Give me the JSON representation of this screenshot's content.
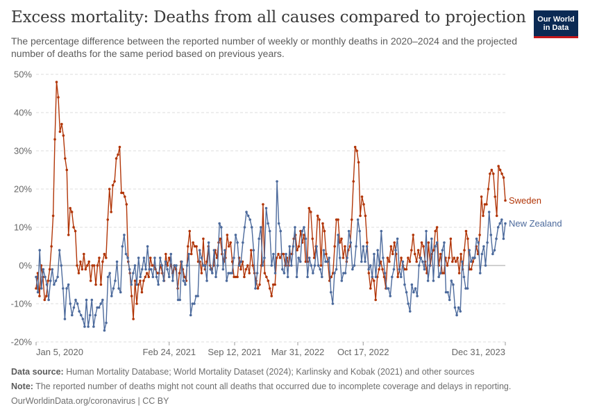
{
  "header": {
    "title": "Excess mortality: Deaths from all causes compared to projection",
    "subtitle": "The percentage difference between the reported number of weekly or monthly deaths in 2020–2024 and the projected number of deaths for the same period based on previous years.",
    "logo_line1": "Our World",
    "logo_line2": "in Data"
  },
  "footer": {
    "source_label": "Data source:",
    "source_text": "Human Mortality Database; World Mortality Dataset (2024); Karlinsky and Kobak (2021) and other sources",
    "note_label": "Note:",
    "note_text": "The reported number of deaths might not count all deaths that occurred due to incomplete coverage and delays in reporting.",
    "credit": "OurWorldinData.org/coronavirus | CC BY"
  },
  "colors": {
    "sweden": "#b13507",
    "new_zealand": "#4c6a9c",
    "grid": "#dddddd",
    "zero": "#a0a0a0"
  },
  "chart_data": {
    "type": "line",
    "title": "Excess mortality: Deaths from all causes compared to projection",
    "ylabel": "",
    "xlabel": "",
    "ylim": [
      -20,
      50
    ],
    "y_ticks": [
      -20,
      -10,
      0,
      10,
      20,
      30,
      40,
      50
    ],
    "y_tick_labels": [
      "-20%",
      "-10%",
      "0%",
      "10%",
      "20%",
      "30%",
      "40%",
      "50%"
    ],
    "x_unit": "week index (0 = Jan 5, 2020)",
    "xlim": [
      0,
      208
    ],
    "x_ticks": [
      0,
      59,
      88,
      116,
      145,
      208
    ],
    "x_tick_labels": [
      "Jan 5, 2020",
      "Feb 24, 2021",
      "Sep 12, 2021",
      "Mar 31, 2022",
      "Oct 17, 2022",
      "Dec 31, 2023"
    ],
    "series": [
      {
        "name": "Sweden",
        "color": "#b13507",
        "values": [
          -6,
          -2,
          -8,
          0,
          -3,
          -9,
          -8,
          -4,
          -1,
          5,
          13,
          33,
          48,
          44,
          35,
          37,
          34,
          28,
          25,
          8,
          15,
          14,
          10,
          9,
          0,
          -2,
          1,
          -1,
          3,
          -1,
          0,
          1,
          -4,
          0,
          0,
          -5,
          0,
          2,
          -5,
          1,
          3,
          2,
          12,
          20,
          14,
          21,
          22,
          28,
          29,
          31,
          19,
          19,
          18,
          16,
          1,
          -2,
          -8,
          -14,
          -4,
          -10,
          -5,
          -4,
          -7,
          -4,
          -3,
          -2,
          -3,
          2,
          0,
          0,
          -1,
          -2,
          -2,
          0,
          -2,
          -4,
          3,
          0,
          2,
          0,
          -2,
          0,
          -1,
          -6,
          -2,
          1,
          -1,
          -3,
          -4,
          5,
          9,
          3,
          6,
          5,
          5,
          1,
          1,
          -2,
          7,
          -1,
          1,
          5,
          0,
          -1,
          0,
          4,
          2,
          6,
          7,
          3,
          1,
          2,
          8,
          5,
          6,
          1,
          -3,
          -3,
          -3,
          2,
          -1,
          1,
          -3,
          -1,
          0,
          -2,
          4,
          0,
          -2,
          -4,
          -6,
          -5,
          0,
          16,
          -2,
          -3,
          -4,
          -6,
          -8,
          -5,
          -5,
          2,
          3,
          2,
          3,
          3,
          0,
          2,
          0,
          3,
          3,
          7,
          8,
          4,
          5,
          9,
          6,
          8,
          1,
          1,
          15,
          14,
          7,
          2,
          5,
          13,
          12,
          0,
          11,
          9,
          3,
          1,
          -4,
          -3,
          -2,
          5,
          12,
          12,
          6,
          7,
          2,
          5,
          1,
          4,
          5,
          12,
          22,
          31,
          30,
          27,
          13,
          18,
          16,
          13,
          6,
          -2,
          -6,
          -3,
          -4,
          -9,
          -3,
          -1,
          1,
          -1,
          -3,
          -6,
          2,
          1,
          5,
          3,
          6,
          3,
          -3,
          -1,
          2,
          0,
          -1,
          -1,
          2,
          1,
          4,
          8,
          3,
          1,
          4,
          2,
          6,
          5,
          1,
          -2,
          6,
          0,
          3,
          4,
          9,
          10,
          0,
          3,
          -2,
          -2,
          2,
          0,
          2,
          7,
          1,
          2,
          1,
          2,
          -2,
          3,
          -1,
          4,
          9,
          7,
          -1,
          -1,
          1,
          2,
          5,
          3,
          8,
          18,
          13,
          16,
          16,
          20,
          24,
          25,
          24,
          18,
          13,
          26,
          25,
          24,
          23,
          17
        ]
      },
      {
        "name": "New Zealand",
        "color": "#4c6a9c",
        "values": [
          -3,
          -7,
          4,
          -6,
          -1,
          -3,
          -5,
          -9,
          -4,
          -1,
          -5,
          -4,
          -3,
          4,
          0,
          -6,
          -14,
          -6,
          -5,
          -10,
          -13,
          -11,
          -9,
          -10,
          -12,
          -13,
          -14,
          -16,
          -9,
          -16,
          -13,
          -9,
          -16,
          -13,
          -11,
          -11,
          -10,
          -9,
          -17,
          -15,
          -3,
          -2,
          -8,
          -6,
          -4,
          1,
          -6,
          -7,
          5,
          8,
          3,
          2,
          -1,
          -5,
          -2,
          0,
          -5,
          2,
          -3,
          -1,
          2,
          -1,
          5,
          -1,
          -1,
          -3,
          2,
          -3,
          -5,
          2,
          0,
          -4,
          1,
          -1,
          -3,
          3,
          -4,
          0,
          0,
          -9,
          -9,
          1,
          -4,
          -5,
          0,
          3,
          -13,
          -10,
          -10,
          -8,
          -8,
          4,
          2,
          0,
          0,
          -4,
          6,
          -1,
          -2,
          4,
          -3,
          0,
          11,
          10,
          -1,
          4,
          -4,
          -2,
          -2,
          -2,
          2,
          8,
          6,
          0,
          1,
          6,
          10,
          14,
          13,
          12,
          10,
          4,
          -6,
          -2,
          7,
          10,
          0,
          2,
          15,
          11,
          9,
          0,
          3,
          -2,
          22,
          11,
          9,
          -1,
          -2,
          3,
          -3,
          5,
          0,
          5,
          10,
          -3,
          2,
          1,
          9,
          10,
          7,
          -3,
          2,
          0,
          -2,
          0,
          5,
          0,
          -1,
          -3,
          4,
          1,
          1,
          2,
          -7,
          -10,
          -2,
          -1,
          8,
          2,
          -4,
          -2,
          -2,
          2,
          9,
          6,
          -1,
          0,
          5,
          12,
          9,
          1,
          5,
          1,
          5,
          -1,
          0,
          -3,
          3,
          -3,
          4,
          0,
          9,
          2,
          -2,
          -6,
          -6,
          -8,
          -3,
          -1,
          4,
          7,
          -1,
          -3,
          1,
          -5,
          -7,
          -10,
          -12,
          -5,
          -7,
          -6,
          -8,
          0,
          2,
          1,
          -1,
          9,
          -4,
          0,
          7,
          -4,
          5,
          6,
          -3,
          -2,
          4,
          6,
          -7,
          -7,
          -9,
          -4,
          -5,
          -11,
          -13,
          -11,
          -12,
          1,
          -3,
          -6,
          -6,
          4,
          1,
          2,
          2,
          7,
          6,
          -2,
          3,
          5,
          0,
          6,
          14,
          8,
          3,
          4,
          7,
          10,
          11,
          12,
          7,
          11
        ]
      }
    ]
  }
}
